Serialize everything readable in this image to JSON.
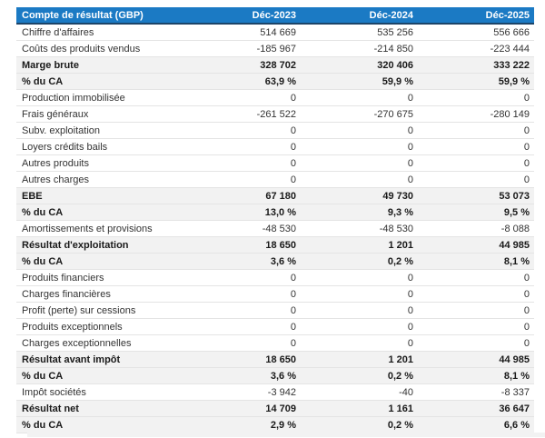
{
  "table": {
    "header": {
      "title": "Compte de résultat (GBP)",
      "columns": [
        "Déc-2023",
        "Déc-2024",
        "Déc-2025"
      ]
    },
    "rows": [
      {
        "label": "Chiffre d'affaires",
        "values": [
          "514 669",
          "535 256",
          "556 666"
        ],
        "style": "normal"
      },
      {
        "label": "Coûts des produits vendus",
        "values": [
          "-185 967",
          "-214 850",
          "-223 444"
        ],
        "style": "normal"
      },
      {
        "label": "Marge brute",
        "values": [
          "328 702",
          "320 406",
          "333 222"
        ],
        "style": "total"
      },
      {
        "label": "% du CA",
        "values": [
          "63,9 %",
          "59,9 %",
          "59,9 %"
        ],
        "style": "total"
      },
      {
        "label": "Production immobilisée",
        "values": [
          "0",
          "0",
          "0"
        ],
        "style": "normal"
      },
      {
        "label": "Frais généraux",
        "values": [
          "-261 522",
          "-270 675",
          "-280 149"
        ],
        "style": "normal"
      },
      {
        "label": "Subv. exploitation",
        "values": [
          "0",
          "0",
          "0"
        ],
        "style": "normal"
      },
      {
        "label": "Loyers crédits bails",
        "values": [
          "0",
          "0",
          "0"
        ],
        "style": "normal"
      },
      {
        "label": "Autres produits",
        "values": [
          "0",
          "0",
          "0"
        ],
        "style": "normal"
      },
      {
        "label": "Autres charges",
        "values": [
          "0",
          "0",
          "0"
        ],
        "style": "normal"
      },
      {
        "label": "EBE",
        "values": [
          "67 180",
          "49 730",
          "53 073"
        ],
        "style": "total"
      },
      {
        "label": "% du CA",
        "values": [
          "13,0 %",
          "9,3 %",
          "9,5 %"
        ],
        "style": "total"
      },
      {
        "label": "Amortissements et provisions",
        "values": [
          "-48 530",
          "-48 530",
          "-8 088"
        ],
        "style": "normal"
      },
      {
        "label": "Résultat d'exploitation",
        "values": [
          "18 650",
          "1 201",
          "44 985"
        ],
        "style": "total"
      },
      {
        "label": "% du CA",
        "values": [
          "3,6 %",
          "0,2 %",
          "8,1 %"
        ],
        "style": "total"
      },
      {
        "label": "Produits financiers",
        "values": [
          "0",
          "0",
          "0"
        ],
        "style": "normal"
      },
      {
        "label": "Charges financières",
        "values": [
          "0",
          "0",
          "0"
        ],
        "style": "normal"
      },
      {
        "label": "Profit (perte) sur cessions",
        "values": [
          "0",
          "0",
          "0"
        ],
        "style": "normal"
      },
      {
        "label": "Produits exceptionnels",
        "values": [
          "0",
          "0",
          "0"
        ],
        "style": "normal"
      },
      {
        "label": "Charges exceptionnelles",
        "values": [
          "0",
          "0",
          "0"
        ],
        "style": "normal"
      },
      {
        "label": "Résultat avant impôt",
        "values": [
          "18 650",
          "1 201",
          "44 985"
        ],
        "style": "total"
      },
      {
        "label": "% du CA",
        "values": [
          "3,6 %",
          "0,2 %",
          "8,1 %"
        ],
        "style": "total"
      },
      {
        "label": "Impôt sociétés",
        "values": [
          "-3 942",
          "-40",
          "-8 337"
        ],
        "style": "normal"
      },
      {
        "label": "Résultat net",
        "values": [
          "14 709",
          "1 161",
          "36 647"
        ],
        "style": "total"
      },
      {
        "label": "% du CA",
        "values": [
          "2,9 %",
          "0,2 %",
          "6,6 %"
        ],
        "style": "total"
      }
    ]
  },
  "colors": {
    "header_bg": "#1b7ac4",
    "header_text": "#ffffff",
    "header_underline": "#1c4468",
    "total_row_bg": "#f2f2f2",
    "row_border": "#e4e4e4",
    "text_color": "#333333"
  }
}
